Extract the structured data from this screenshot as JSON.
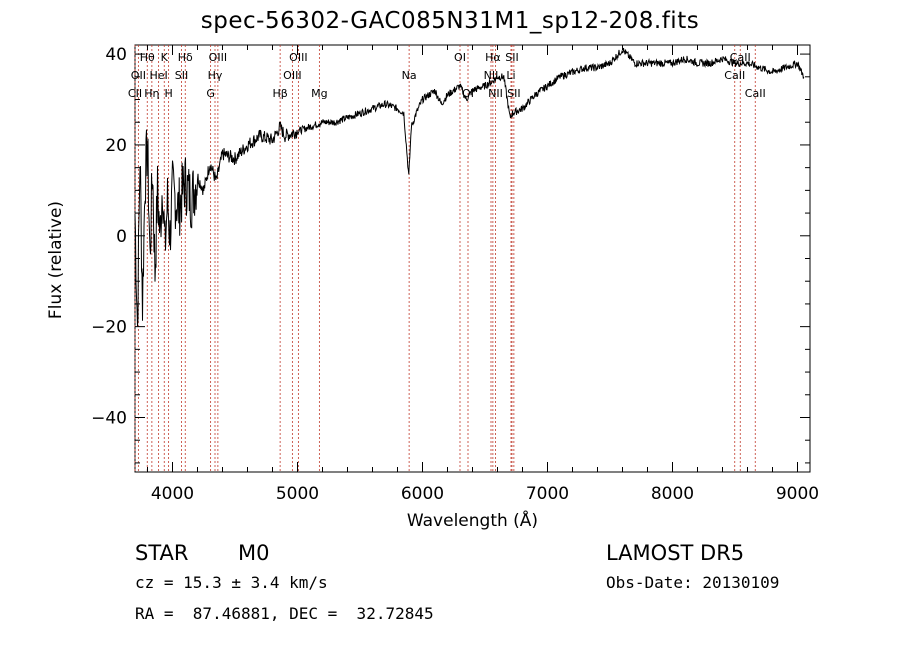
{
  "chart_data": {
    "type": "line",
    "title": "spec-56302-GAC085N31M1_sp12-208.fits",
    "xlabel": "Wavelength (Å)",
    "ylabel": "Flux (relative)",
    "xlim": [
      3700,
      9100
    ],
    "ylim": [
      -52,
      42
    ],
    "x_ticks": [
      4000,
      5000,
      6000,
      7000,
      8000,
      9000
    ],
    "y_ticks": [
      -40,
      -20,
      0,
      20,
      40
    ],
    "grid": false,
    "series": [
      {
        "x": [
          3700,
          3720,
          3740,
          3760,
          3780,
          3800,
          3820,
          3840,
          3860,
          3880,
          3900,
          3920,
          3940,
          3960,
          3980,
          4000,
          4050,
          4100,
          4150,
          4200,
          4250,
          4300,
          4350,
          4400,
          4500,
          4600,
          4700,
          4800,
          4860,
          4900,
          5000,
          5100,
          5200,
          5300,
          5400,
          5500,
          5600,
          5700,
          5800,
          5850,
          5890,
          5910,
          5950,
          6000,
          6100,
          6150,
          6200,
          6300,
          6350,
          6400,
          6500,
          6560,
          6600,
          6650,
          6700,
          6720,
          6800,
          6900,
          7000,
          7100,
          7200,
          7300,
          7400,
          7500,
          7600,
          7700,
          7800,
          7900,
          8000,
          8100,
          8200,
          8300,
          8400,
          8500,
          8600,
          8700,
          8800,
          8900,
          9000,
          9050
        ],
        "y": [
          5,
          -20,
          18,
          -15,
          12,
          20,
          -5,
          15,
          -8,
          10,
          0,
          12,
          -3,
          8,
          0,
          10,
          6,
          12,
          8,
          13,
          10,
          16,
          12,
          18,
          17,
          20,
          22,
          21,
          24,
          22,
          23,
          24,
          25,
          25,
          26,
          27,
          28,
          29,
          28,
          27,
          13,
          24,
          27,
          30,
          32,
          29,
          31,
          33,
          30,
          32,
          33,
          34,
          35,
          35,
          26,
          27,
          28,
          31,
          33,
          35,
          36,
          37,
          37,
          38,
          41,
          38,
          38,
          38,
          38,
          39,
          38,
          38,
          39,
          38,
          38,
          37,
          36,
          37,
          38,
          35
        ]
      }
    ],
    "line_annotations": [
      {
        "label": "Hθ",
        "wave": 3798,
        "row": 0
      },
      {
        "label": "OII",
        "wave": 3727,
        "row": 1
      },
      {
        "label": "CII",
        "wave": 3700,
        "row": 2
      },
      {
        "label": "Hη",
        "wave": 3835,
        "row": 2
      },
      {
        "label": "HeI",
        "wave": 3889,
        "row": 1
      },
      {
        "label": "K",
        "wave": 3934,
        "row": 0
      },
      {
        "label": "H",
        "wave": 3969,
        "row": 2
      },
      {
        "label": "SII",
        "wave": 4072,
        "row": 1
      },
      {
        "label": "Hδ",
        "wave": 4102,
        "row": 0
      },
      {
        "label": "OIII",
        "wave": 4363,
        "row": 0
      },
      {
        "label": "Hγ",
        "wave": 4340,
        "row": 1
      },
      {
        "label": "G",
        "wave": 4305,
        "row": 2
      },
      {
        "label": "Hβ",
        "wave": 4861,
        "row": 2
      },
      {
        "label": "OIII",
        "wave": 5007,
        "row": 0
      },
      {
        "label": "OIII",
        "wave": 4959,
        "row": 1
      },
      {
        "label": "Mg",
        "wave": 5175,
        "row": 2
      },
      {
        "label": "Na",
        "wave": 5893,
        "row": 1
      },
      {
        "label": "OI",
        "wave": 6300,
        "row": 0
      },
      {
        "label": "OI",
        "wave": 6364,
        "row": 2
      },
      {
        "label": "Hα",
        "wave": 6563,
        "row": 0
      },
      {
        "label": "SII",
        "wave": 6716,
        "row": 0
      },
      {
        "label": "NII",
        "wave": 6548,
        "row": 1
      },
      {
        "label": "Li",
        "wave": 6708,
        "row": 1
      },
      {
        "label": "NII",
        "wave": 6584,
        "row": 2
      },
      {
        "label": "SII",
        "wave": 6731,
        "row": 2
      },
      {
        "label": "CaII",
        "wave": 8542,
        "row": 0
      },
      {
        "label": "CaII",
        "wave": 8498,
        "row": 1
      },
      {
        "label": "CaII",
        "wave": 8662,
        "row": 2
      }
    ]
  },
  "info": {
    "class_type": "STAR",
    "subclass": "M0",
    "survey": "LAMOST DR5",
    "cz": "cz = 15.3 ± 3.4 km/s",
    "obs_date": "Obs-Date: 20130109",
    "radec": "RA =  87.46881, DEC =  32.72845"
  }
}
